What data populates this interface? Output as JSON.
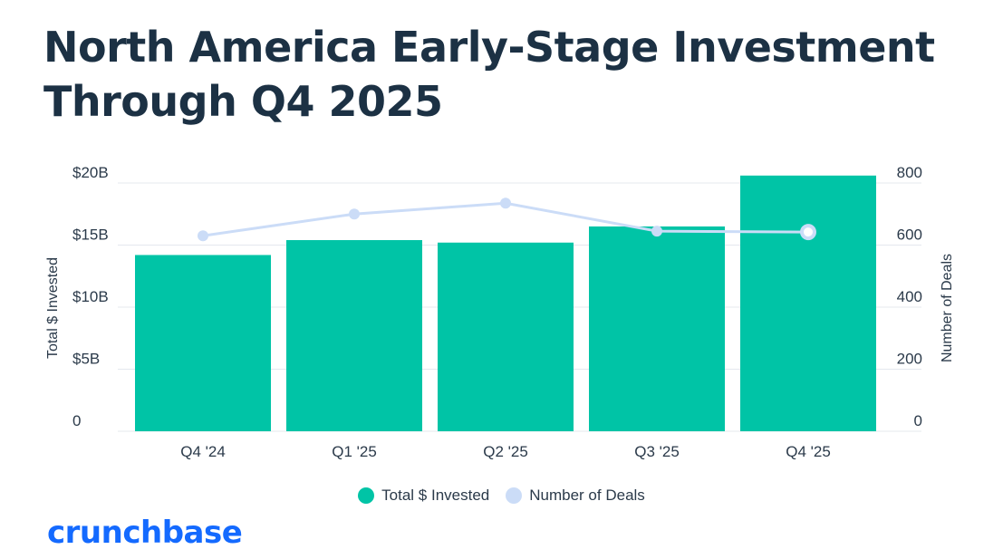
{
  "title": "North America Early-Stage Investment Through Q4 2025",
  "brand": "crunchbase",
  "colors": {
    "bars": "#00c4a6",
    "line": "#cbdcf7",
    "line_last_point": "#ffffff",
    "grid": "#e4e8ee",
    "text": "#1c3144",
    "brand": "#146aff"
  },
  "chart_data": {
    "type": "bar",
    "categories": [
      "Q4 '24",
      "Q1 '25",
      "Q2 '25",
      "Q3 '25",
      "Q4 '25"
    ],
    "series": [
      {
        "name": "Total $ Invested",
        "kind": "bar",
        "axis": "left",
        "values": [
          14.2,
          15.4,
          15.2,
          16.5,
          20.6
        ]
      },
      {
        "name": "Number of Deals",
        "kind": "line",
        "axis": "right",
        "values": [
          630,
          700,
          735,
          645,
          642
        ]
      }
    ],
    "y_left": {
      "label": "Total $ Invested",
      "ticks": [
        "0",
        "$5B",
        "$10B",
        "$15B",
        "$20B"
      ],
      "range": [
        0,
        20
      ]
    },
    "y_right": {
      "label": "Number of Deals",
      "ticks": [
        "0",
        "200",
        "400",
        "600",
        "800"
      ],
      "range": [
        0,
        800
      ]
    },
    "legend": [
      "Total $ Invested",
      "Number of Deals"
    ],
    "legend_position": "bottom",
    "grid": true
  }
}
